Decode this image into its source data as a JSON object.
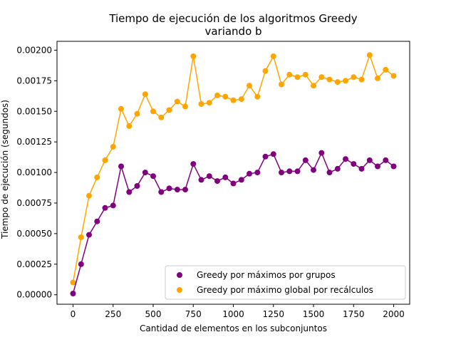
{
  "chart_data": {
    "type": "scatter",
    "title": "Tiempo de ejecución de los algoritmos Greedy",
    "subtitle": "variando b",
    "xlabel": "Cantidad de elementos en los subconjuntos",
    "ylabel": "Tiempo de ejecución (segundos)",
    "xlim": [
      -100,
      2100
    ],
    "ylim": [
      -7.75e-05,
      0.0020725
    ],
    "xticks": [
      0,
      250,
      500,
      750,
      1000,
      1250,
      1500,
      1750,
      2000
    ],
    "xtick_labels": [
      "0",
      "250",
      "500",
      "750",
      "1000",
      "1250",
      "1500",
      "1750",
      "2000"
    ],
    "yticks": [
      0,
      0.00025,
      0.0005,
      0.00075,
      0.001,
      0.00125,
      0.0015,
      0.00175,
      0.002
    ],
    "ytick_labels": [
      "0.00000",
      "0.00025",
      "0.00050",
      "0.00075",
      "0.00100",
      "0.00125",
      "0.00150",
      "0.00175",
      "0.00200"
    ],
    "grid": false,
    "legend_position": "lower-right",
    "x": [
      0,
      50,
      100,
      150,
      200,
      250,
      300,
      350,
      400,
      450,
      500,
      550,
      600,
      650,
      700,
      750,
      800,
      850,
      900,
      950,
      1000,
      1050,
      1100,
      1150,
      1200,
      1250,
      1300,
      1350,
      1400,
      1450,
      1500,
      1550,
      1600,
      1650,
      1700,
      1750,
      1800,
      1850,
      1900,
      1950,
      2000
    ],
    "series": [
      {
        "name": "Greedy por máximos por grupos",
        "color": "#800080",
        "values": [
          1e-05,
          0.00025,
          0.00049,
          0.0006,
          0.00071,
          0.00073,
          0.00105,
          0.00084,
          0.00089,
          0.001,
          0.00097,
          0.00084,
          0.00087,
          0.00086,
          0.00086,
          0.00107,
          0.00094,
          0.00097,
          0.00093,
          0.00096,
          0.00091,
          0.00094,
          0.00099,
          0.001,
          0.00113,
          0.00115,
          0.001,
          0.00101,
          0.00101,
          0.0011,
          0.00102,
          0.00116,
          0.001,
          0.00103,
          0.00111,
          0.00107,
          0.00103,
          0.0011,
          0.00105,
          0.0011,
          0.00105
        ]
      },
      {
        "name": "Greedy por máximo global por recálculos",
        "color": "#ffa500",
        "values": [
          0.0001,
          0.00047,
          0.00081,
          0.00096,
          0.0011,
          0.00121,
          0.00152,
          0.00138,
          0.00148,
          0.00164,
          0.0015,
          0.00145,
          0.00151,
          0.00158,
          0.00154,
          0.00195,
          0.00156,
          0.00157,
          0.00163,
          0.00162,
          0.00159,
          0.0016,
          0.00171,
          0.00162,
          0.00183,
          0.00195,
          0.00172,
          0.0018,
          0.00178,
          0.0018,
          0.00171,
          0.00178,
          0.00176,
          0.00174,
          0.00175,
          0.00178,
          0.00176,
          0.00196,
          0.00177,
          0.00184,
          0.00179
        ]
      }
    ]
  }
}
